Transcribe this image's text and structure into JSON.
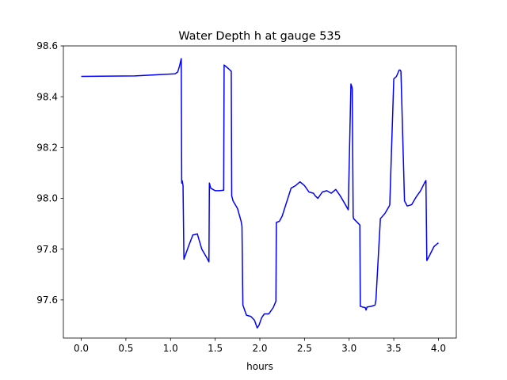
{
  "chart_data": {
    "type": "line",
    "title": "Water Depth h at gauge 535",
    "xlabel": "hours",
    "ylabel": "",
    "xlim": [
      -0.2,
      4.2
    ],
    "ylim": [
      97.45,
      98.6
    ],
    "grid": false,
    "x_ticks": [
      {
        "value": 0.0,
        "label": "0.0"
      },
      {
        "value": 0.5,
        "label": "0.5"
      },
      {
        "value": 1.0,
        "label": "1.0"
      },
      {
        "value": 1.5,
        "label": "1.5"
      },
      {
        "value": 2.0,
        "label": "2.0"
      },
      {
        "value": 2.5,
        "label": "2.5"
      },
      {
        "value": 3.0,
        "label": "3.0"
      },
      {
        "value": 3.5,
        "label": "3.5"
      },
      {
        "value": 4.0,
        "label": "4.0"
      }
    ],
    "y_ticks": [
      {
        "value": 97.6,
        "label": "97.6"
      },
      {
        "value": 97.8,
        "label": "97.8"
      },
      {
        "value": 98.0,
        "label": "98.0"
      },
      {
        "value": 98.2,
        "label": "98.2"
      },
      {
        "value": 98.4,
        "label": "98.4"
      },
      {
        "value": 98.6,
        "label": "98.6"
      }
    ],
    "series": [
      {
        "color": "#0000ff",
        "x": [
          0.0,
          0.6,
          1.05,
          1.08,
          1.1,
          1.12,
          1.125,
          1.13,
          1.14,
          1.15,
          1.2,
          1.25,
          1.28,
          1.3,
          1.35,
          1.4,
          1.43,
          1.435,
          1.45,
          1.5,
          1.55,
          1.595,
          1.6,
          1.65,
          1.68,
          1.685,
          1.7,
          1.75,
          1.79,
          1.8,
          1.81,
          1.85,
          1.9,
          1.94,
          1.97,
          1.99,
          2.02,
          2.05,
          2.1,
          2.15,
          2.18,
          2.185,
          2.22,
          2.25,
          2.3,
          2.35,
          2.4,
          2.45,
          2.5,
          2.55,
          2.6,
          2.62,
          2.65,
          2.7,
          2.75,
          2.8,
          2.85,
          2.9,
          2.95,
          2.99,
          3.02,
          3.03,
          3.035,
          3.045,
          3.05,
          3.12,
          3.125,
          3.15,
          3.18,
          3.19,
          3.2,
          3.25,
          3.29,
          3.3,
          3.35,
          3.4,
          3.45,
          3.455,
          3.5,
          3.53,
          3.56,
          3.57,
          3.58,
          3.62,
          3.65,
          3.7,
          3.75,
          3.8,
          3.85,
          3.86,
          3.87,
          3.9,
          3.95,
          4.0
        ],
        "y": [
          98.48,
          98.482,
          98.49,
          98.497,
          98.52,
          98.55,
          98.06,
          98.07,
          98.05,
          97.76,
          97.81,
          97.856,
          97.858,
          97.86,
          97.8,
          97.77,
          97.75,
          98.06,
          98.04,
          98.03,
          98.03,
          98.032,
          98.525,
          98.51,
          98.5,
          98.01,
          97.99,
          97.96,
          97.91,
          97.89,
          97.58,
          97.54,
          97.535,
          97.52,
          97.49,
          97.5,
          97.53,
          97.545,
          97.545,
          97.57,
          97.595,
          97.905,
          97.91,
          97.93,
          97.985,
          98.04,
          98.05,
          98.065,
          98.05,
          98.025,
          98.02,
          98.01,
          98.0,
          98.025,
          98.03,
          98.02,
          98.035,
          98.01,
          97.98,
          97.955,
          98.45,
          98.44,
          98.43,
          97.93,
          97.92,
          97.895,
          97.575,
          97.572,
          97.57,
          97.56,
          97.572,
          97.575,
          97.58,
          97.6,
          97.92,
          97.94,
          97.97,
          97.975,
          98.47,
          98.48,
          98.505,
          98.505,
          98.5,
          97.99,
          97.97,
          97.975,
          98.005,
          98.03,
          98.065,
          98.07,
          97.755,
          97.775,
          97.81,
          97.825
        ]
      }
    ]
  }
}
